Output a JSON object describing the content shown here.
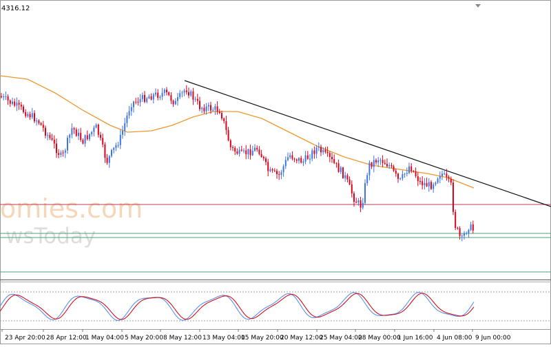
{
  "header": {
    "price_label": "4316.12",
    "dropdown_icon": "triangle-down-icon"
  },
  "watermark": {
    "line1": "omies.com",
    "line2": "wsToday"
  },
  "x_ticks": [
    "23 Apr 20:00",
    "28 Apr 12:00",
    "1 May 04:00",
    "5 May 20:00",
    "8 May 12:00",
    "13 May 04:00",
    "15 May 20:00",
    "20 May 12:00",
    "25 May 04:00",
    "28 May 00:00",
    "1 Jun 16:00",
    "4 Jun 08:00",
    "9 Jun 00:00"
  ],
  "colors": {
    "bull": "#3b73e8",
    "bear": "#e0001a",
    "ma": "#f0962e",
    "trend": "#111111",
    "resistance": "#c23a55",
    "support": "#4aa37a",
    "stoch_k": "#5b8ff0",
    "stoch_d": "#d0101e"
  },
  "chart_data": [
    {
      "type": "candlestick",
      "title": "",
      "indicators": [
        "moving average",
        "descending trendline",
        "horizontal red level",
        "horizontal green levels"
      ],
      "trend": "downtrend along a descending line, price breaks below the red level and bounces near the green support",
      "ma_trend": "rising until mid-May, then flattening and declining toward late May / June"
    },
    {
      "type": "line",
      "title": "",
      "indicator": "stochastic oscillator",
      "series": [
        {
          "color": "#5b8ff0"
        },
        {
          "color": "#d0101e"
        }
      ]
    }
  ]
}
